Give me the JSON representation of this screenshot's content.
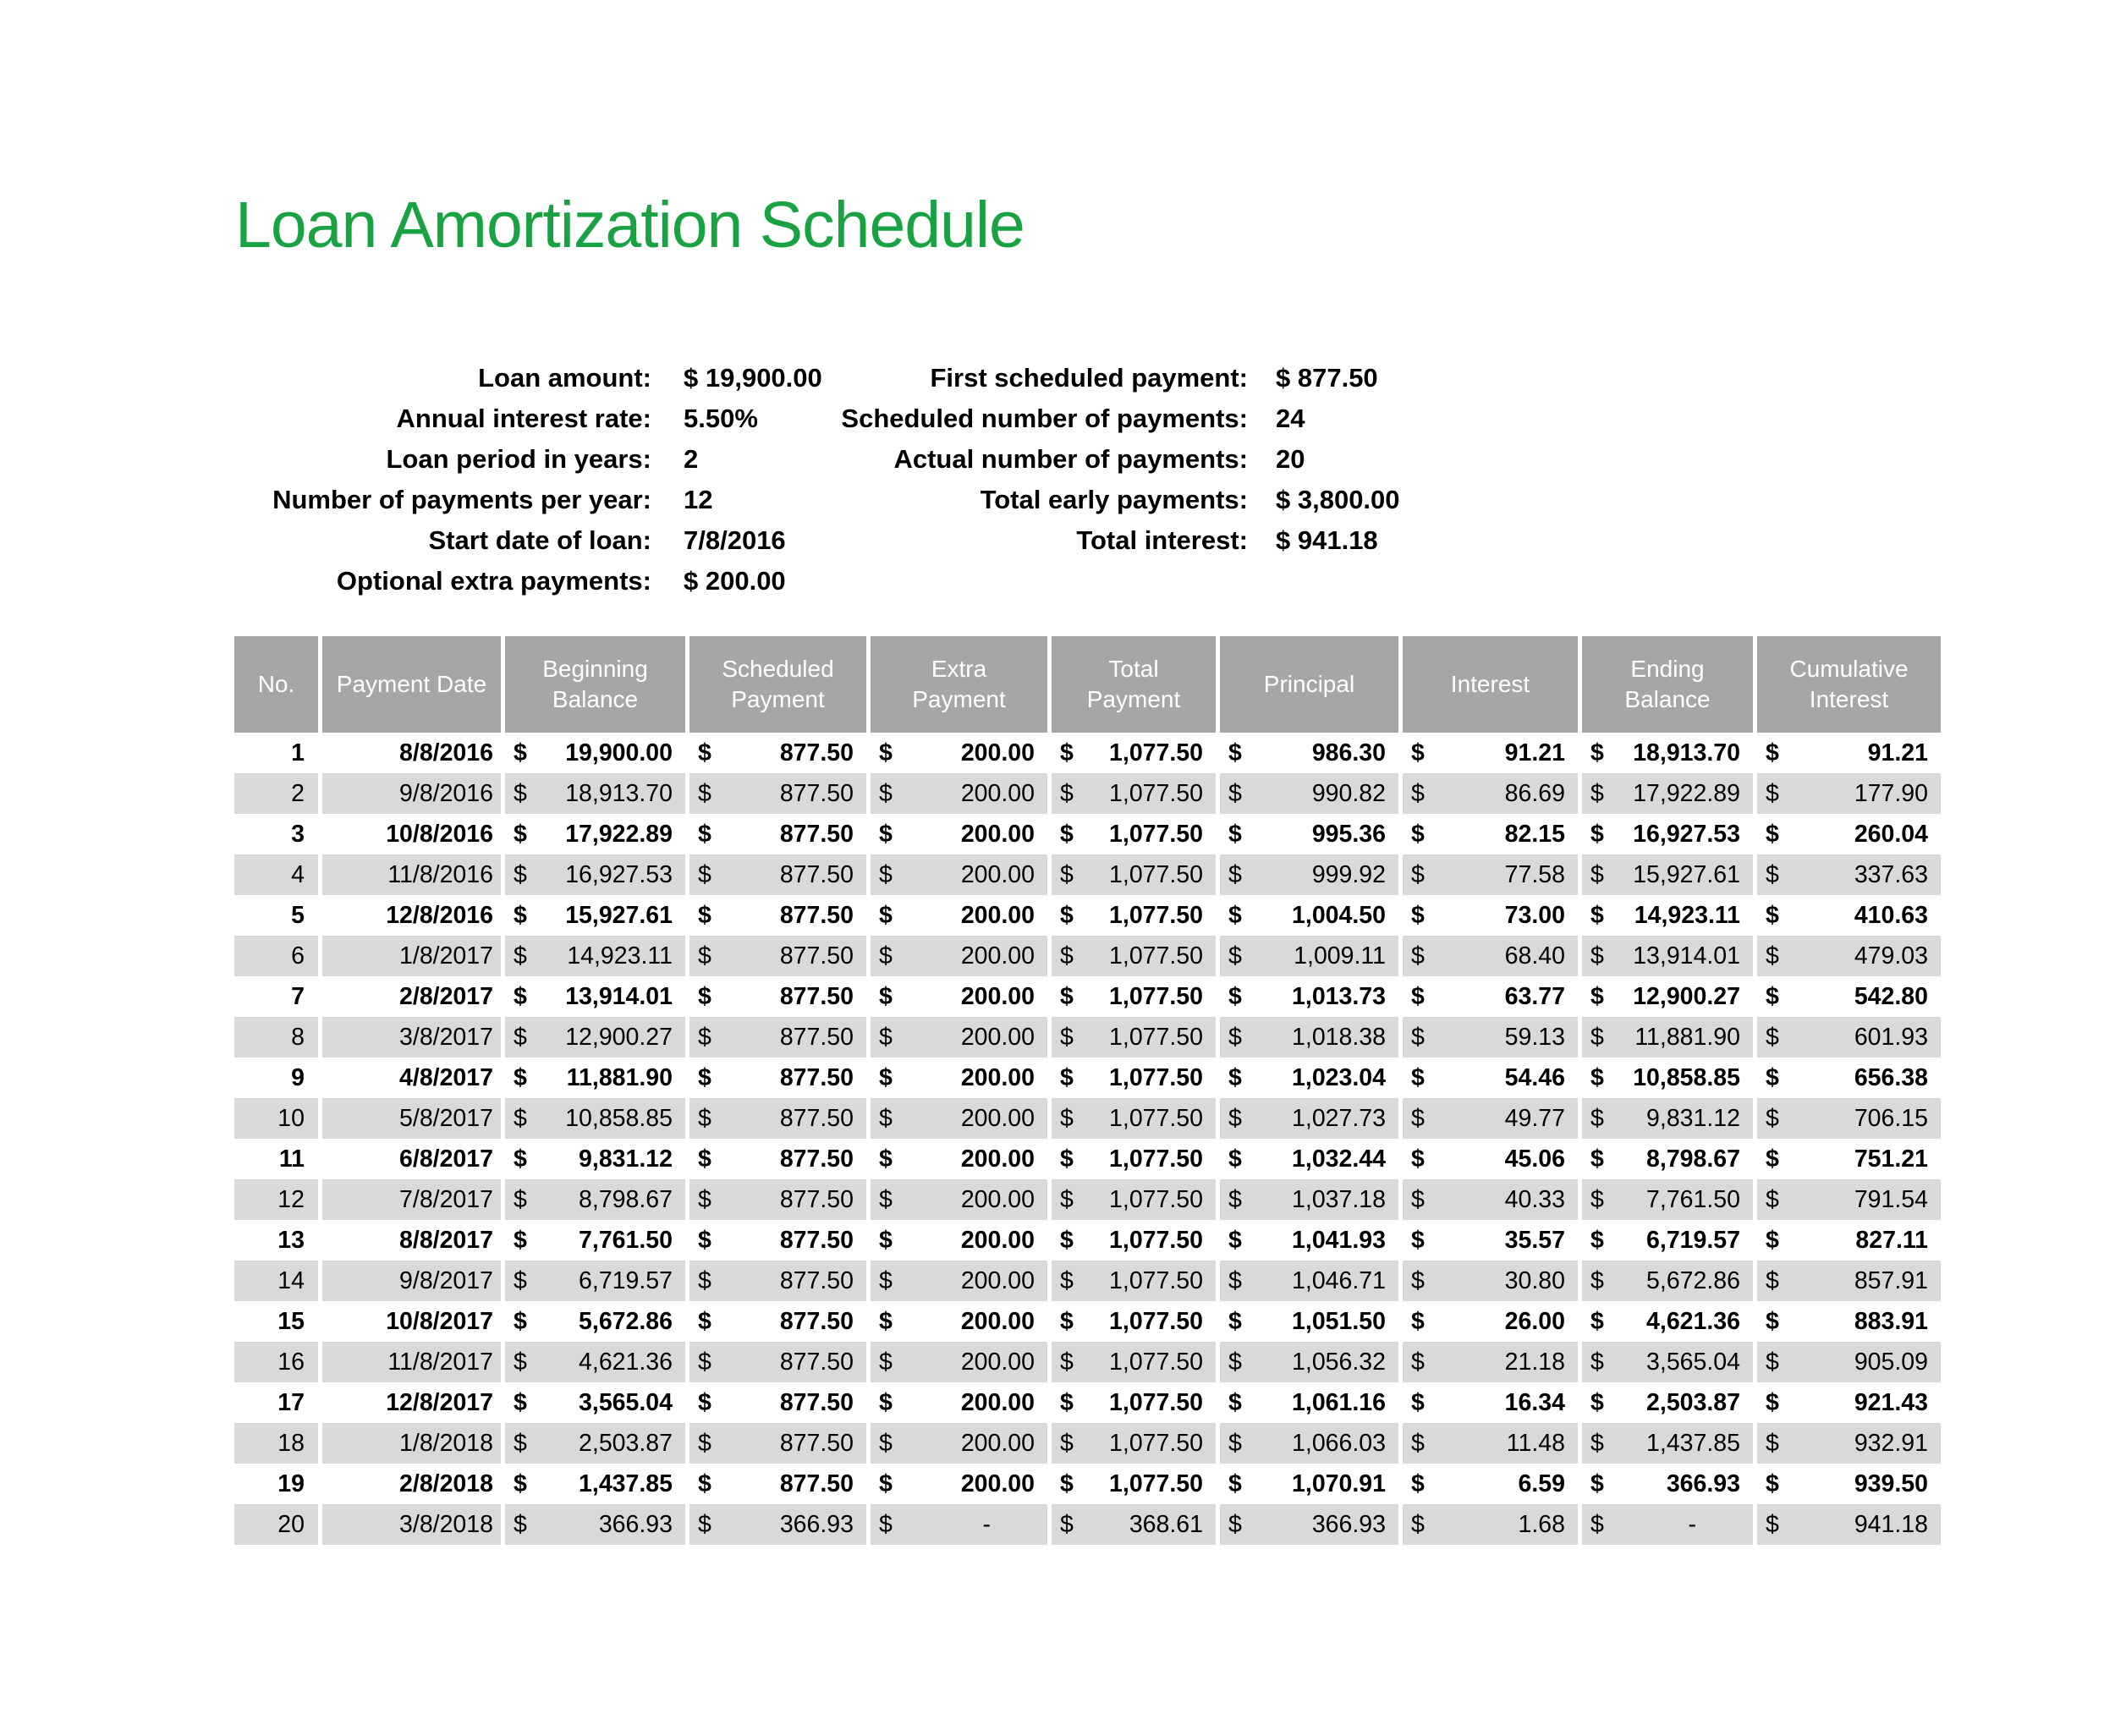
{
  "title": "Loan Amortization Schedule",
  "colors": {
    "title_green": "#18a242",
    "header_bg": "#a6a6a6",
    "stripe_bg": "#d9d9d9",
    "text": "#000000"
  },
  "summary": {
    "left": [
      {
        "label": "Loan amount:",
        "value": "$ 19,900.00"
      },
      {
        "label": "Annual interest rate:",
        "value": "5.50%"
      },
      {
        "label": "Loan period in years:",
        "value": "2"
      },
      {
        "label": "Number of payments per year:",
        "value": "12"
      },
      {
        "label": "Start date of loan:",
        "value": "7/8/2016"
      },
      {
        "label": "Optional extra payments:",
        "value": "$ 200.00"
      }
    ],
    "right": [
      {
        "label": "First scheduled payment:",
        "value": "$ 877.50"
      },
      {
        "label": "Scheduled number of payments:",
        "value": "24"
      },
      {
        "label": "Actual number of payments:",
        "value": "20"
      },
      {
        "label": "Total early payments:",
        "value": "$ 3,800.00"
      },
      {
        "label": "Total interest:",
        "value": "$ 941.18"
      }
    ]
  },
  "table": {
    "columns": [
      "No.",
      "Payment Date",
      "Beginning\nBalance",
      "Scheduled\nPayment",
      "Extra\nPayment",
      "Total\nPayment",
      "Principal",
      "Interest",
      "Ending\nBalance",
      "Cumulative\nInterest"
    ],
    "currency_symbol": "$",
    "rows": [
      [
        "1",
        "8/8/2016",
        "19,900.00",
        "877.50",
        "200.00",
        "1,077.50",
        "986.30",
        "91.21",
        "18,913.70",
        "91.21"
      ],
      [
        "2",
        "9/8/2016",
        "18,913.70",
        "877.50",
        "200.00",
        "1,077.50",
        "990.82",
        "86.69",
        "17,922.89",
        "177.90"
      ],
      [
        "3",
        "10/8/2016",
        "17,922.89",
        "877.50",
        "200.00",
        "1,077.50",
        "995.36",
        "82.15",
        "16,927.53",
        "260.04"
      ],
      [
        "4",
        "11/8/2016",
        "16,927.53",
        "877.50",
        "200.00",
        "1,077.50",
        "999.92",
        "77.58",
        "15,927.61",
        "337.63"
      ],
      [
        "5",
        "12/8/2016",
        "15,927.61",
        "877.50",
        "200.00",
        "1,077.50",
        "1,004.50",
        "73.00",
        "14,923.11",
        "410.63"
      ],
      [
        "6",
        "1/8/2017",
        "14,923.11",
        "877.50",
        "200.00",
        "1,077.50",
        "1,009.11",
        "68.40",
        "13,914.01",
        "479.03"
      ],
      [
        "7",
        "2/8/2017",
        "13,914.01",
        "877.50",
        "200.00",
        "1,077.50",
        "1,013.73",
        "63.77",
        "12,900.27",
        "542.80"
      ],
      [
        "8",
        "3/8/2017",
        "12,900.27",
        "877.50",
        "200.00",
        "1,077.50",
        "1,018.38",
        "59.13",
        "11,881.90",
        "601.93"
      ],
      [
        "9",
        "4/8/2017",
        "11,881.90",
        "877.50",
        "200.00",
        "1,077.50",
        "1,023.04",
        "54.46",
        "10,858.85",
        "656.38"
      ],
      [
        "10",
        "5/8/2017",
        "10,858.85",
        "877.50",
        "200.00",
        "1,077.50",
        "1,027.73",
        "49.77",
        "9,831.12",
        "706.15"
      ],
      [
        "11",
        "6/8/2017",
        "9,831.12",
        "877.50",
        "200.00",
        "1,077.50",
        "1,032.44",
        "45.06",
        "8,798.67",
        "751.21"
      ],
      [
        "12",
        "7/8/2017",
        "8,798.67",
        "877.50",
        "200.00",
        "1,077.50",
        "1,037.18",
        "40.33",
        "7,761.50",
        "791.54"
      ],
      [
        "13",
        "8/8/2017",
        "7,761.50",
        "877.50",
        "200.00",
        "1,077.50",
        "1,041.93",
        "35.57",
        "6,719.57",
        "827.11"
      ],
      [
        "14",
        "9/8/2017",
        "6,719.57",
        "877.50",
        "200.00",
        "1,077.50",
        "1,046.71",
        "30.80",
        "5,672.86",
        "857.91"
      ],
      [
        "15",
        "10/8/2017",
        "5,672.86",
        "877.50",
        "200.00",
        "1,077.50",
        "1,051.50",
        "26.00",
        "4,621.36",
        "883.91"
      ],
      [
        "16",
        "11/8/2017",
        "4,621.36",
        "877.50",
        "200.00",
        "1,077.50",
        "1,056.32",
        "21.18",
        "3,565.04",
        "905.09"
      ],
      [
        "17",
        "12/8/2017",
        "3,565.04",
        "877.50",
        "200.00",
        "1,077.50",
        "1,061.16",
        "16.34",
        "2,503.87",
        "921.43"
      ],
      [
        "18",
        "1/8/2018",
        "2,503.87",
        "877.50",
        "200.00",
        "1,077.50",
        "1,066.03",
        "11.48",
        "1,437.85",
        "932.91"
      ],
      [
        "19",
        "2/8/2018",
        "1,437.85",
        "877.50",
        "200.00",
        "1,077.50",
        "1,070.91",
        "6.59",
        "366.93",
        "939.50"
      ],
      [
        "20",
        "3/8/2018",
        "366.93",
        "366.93",
        "-",
        "368.61",
        "366.93",
        "1.68",
        "-",
        "941.18"
      ]
    ]
  }
}
